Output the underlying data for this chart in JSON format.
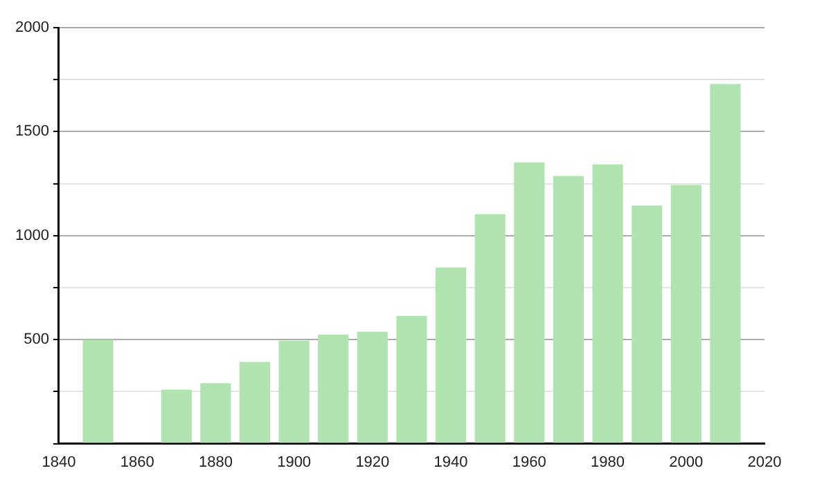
{
  "chart_data": {
    "type": "bar",
    "x": [
      1850,
      1870,
      1880,
      1890,
      1900,
      1910,
      1920,
      1930,
      1940,
      1950,
      1960,
      1970,
      1980,
      1990,
      2000,
      2010
    ],
    "values": [
      500,
      260,
      290,
      393,
      495,
      524,
      538,
      614,
      846,
      1103,
      1352,
      1287,
      1343,
      1145,
      1244,
      1729
    ],
    "color": "#b0e3b0",
    "xlim": [
      1840,
      2020
    ],
    "xticks": [
      1840,
      1860,
      1880,
      1900,
      1920,
      1940,
      1960,
      1980,
      2000,
      2020
    ],
    "ylim": [
      0,
      2000
    ],
    "yticks": [
      {
        "value": 0,
        "label": null
      },
      {
        "value": 250,
        "label": null
      },
      500,
      {
        "value": 750,
        "label": null
      },
      1000,
      {
        "value": 1250,
        "label": null
      },
      1500,
      {
        "value": 1750,
        "label": null
      },
      2000
    ],
    "grid": "y"
  }
}
